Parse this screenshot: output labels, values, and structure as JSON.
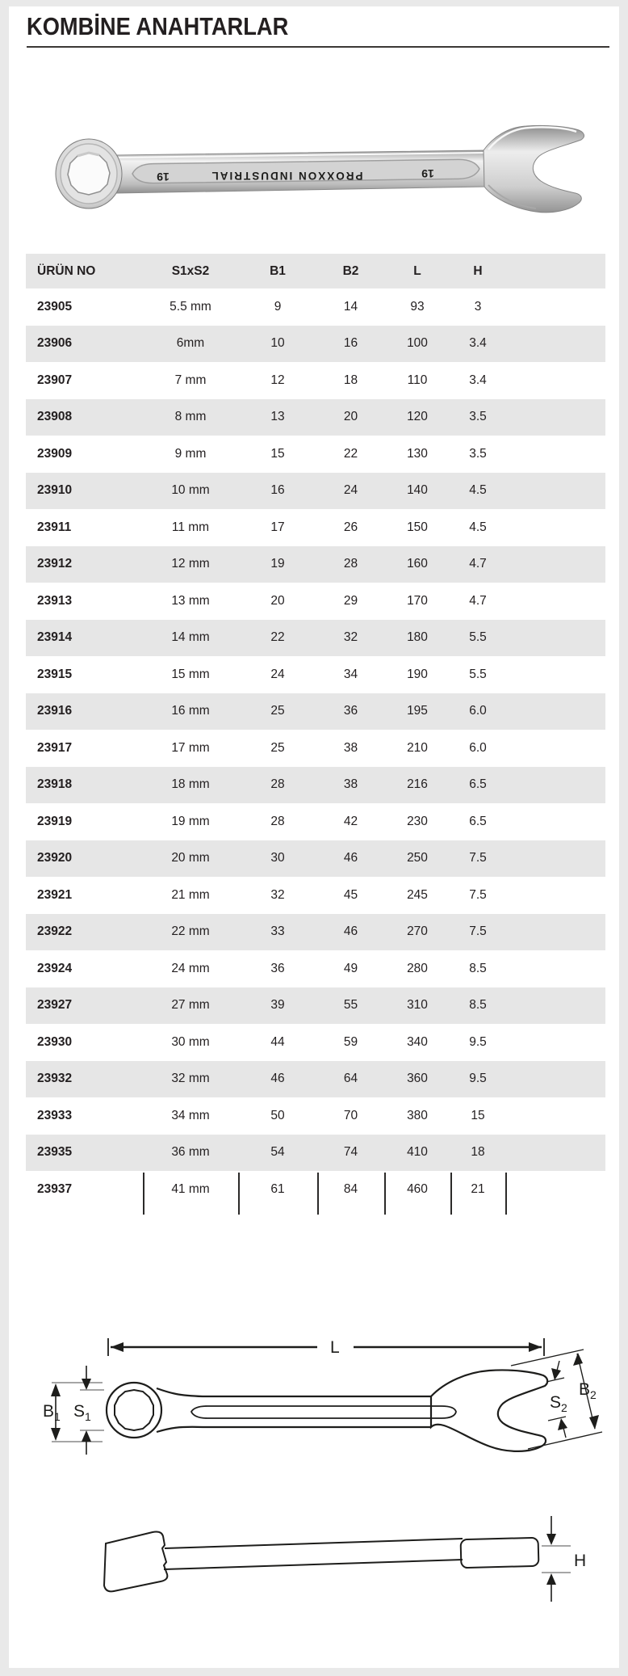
{
  "page": {
    "title": "KOMBİNE ANAHTARLAR"
  },
  "photo": {
    "brand_engraving": "PROXXON INDUSTRIAL",
    "size_marking_left": "19",
    "size_marking_right": "19"
  },
  "table": {
    "headers": [
      "ÜRÜN NO",
      "S1xS2",
      "B1",
      "B2",
      "L",
      "H"
    ],
    "rows": [
      [
        "23905",
        "5.5 mm",
        "9",
        "14",
        "93",
        "3"
      ],
      [
        "23906",
        "6mm",
        "10",
        "16",
        "100",
        "3.4"
      ],
      [
        "23907",
        "7 mm",
        "12",
        "18",
        "110",
        "3.4"
      ],
      [
        "23908",
        "8 mm",
        "13",
        "20",
        "120",
        "3.5"
      ],
      [
        "23909",
        "9 mm",
        "15",
        "22",
        "130",
        "3.5"
      ],
      [
        "23910",
        "10 mm",
        "16",
        "24",
        "140",
        "4.5"
      ],
      [
        "23911",
        "11 mm",
        "17",
        "26",
        "150",
        "4.5"
      ],
      [
        "23912",
        "12 mm",
        "19",
        "28",
        "160",
        "4.7"
      ],
      [
        "23913",
        "13 mm",
        "20",
        "29",
        "170",
        "4.7"
      ],
      [
        "23914",
        "14 mm",
        "22",
        "32",
        "180",
        "5.5"
      ],
      [
        "23915",
        "15 mm",
        "24",
        "34",
        "190",
        "5.5"
      ],
      [
        "23916",
        "16 mm",
        "25",
        "36",
        "195",
        "6.0"
      ],
      [
        "23917",
        "17 mm",
        "25",
        "38",
        "210",
        "6.0"
      ],
      [
        "23918",
        "18 mm",
        "28",
        "38",
        "216",
        "6.5"
      ],
      [
        "23919",
        "19 mm",
        "28",
        "42",
        "230",
        "6.5"
      ],
      [
        "23920",
        "20 mm",
        "30",
        "46",
        "250",
        "7.5"
      ],
      [
        "23921",
        "21 mm",
        "32",
        "45",
        "245",
        "7.5"
      ],
      [
        "23922",
        "22 mm",
        "33",
        "46",
        "270",
        "7.5"
      ],
      [
        "23924",
        "24 mm",
        "36",
        "49",
        "280",
        "8.5"
      ],
      [
        "23927",
        "27 mm",
        "39",
        "55",
        "310",
        "8.5"
      ],
      [
        "23930",
        "30 mm",
        "44",
        "59",
        "340",
        "9.5"
      ],
      [
        "23932",
        "32 mm",
        "46",
        "64",
        "360",
        "9.5"
      ],
      [
        "23933",
        "34 mm",
        "50",
        "70",
        "380",
        "15"
      ],
      [
        "23935",
        "36 mm",
        "54",
        "74",
        "410",
        "18"
      ],
      [
        "23937",
        "41 mm",
        "61",
        "84",
        "460",
        "21"
      ]
    ]
  },
  "diagram": {
    "length_label": "L",
    "b1": {
      "base": "B",
      "sub": "1"
    },
    "s1": {
      "base": "S",
      "sub": "1"
    },
    "s2": {
      "base": "S",
      "sub": "2"
    },
    "b2": {
      "base": "B",
      "sub": "2"
    },
    "h_label": "H"
  },
  "colors": {
    "stripe": "#e6e6e6",
    "text": "#231f20",
    "page_frame": "#e9e9e9",
    "title_rule": "#3b3836"
  }
}
